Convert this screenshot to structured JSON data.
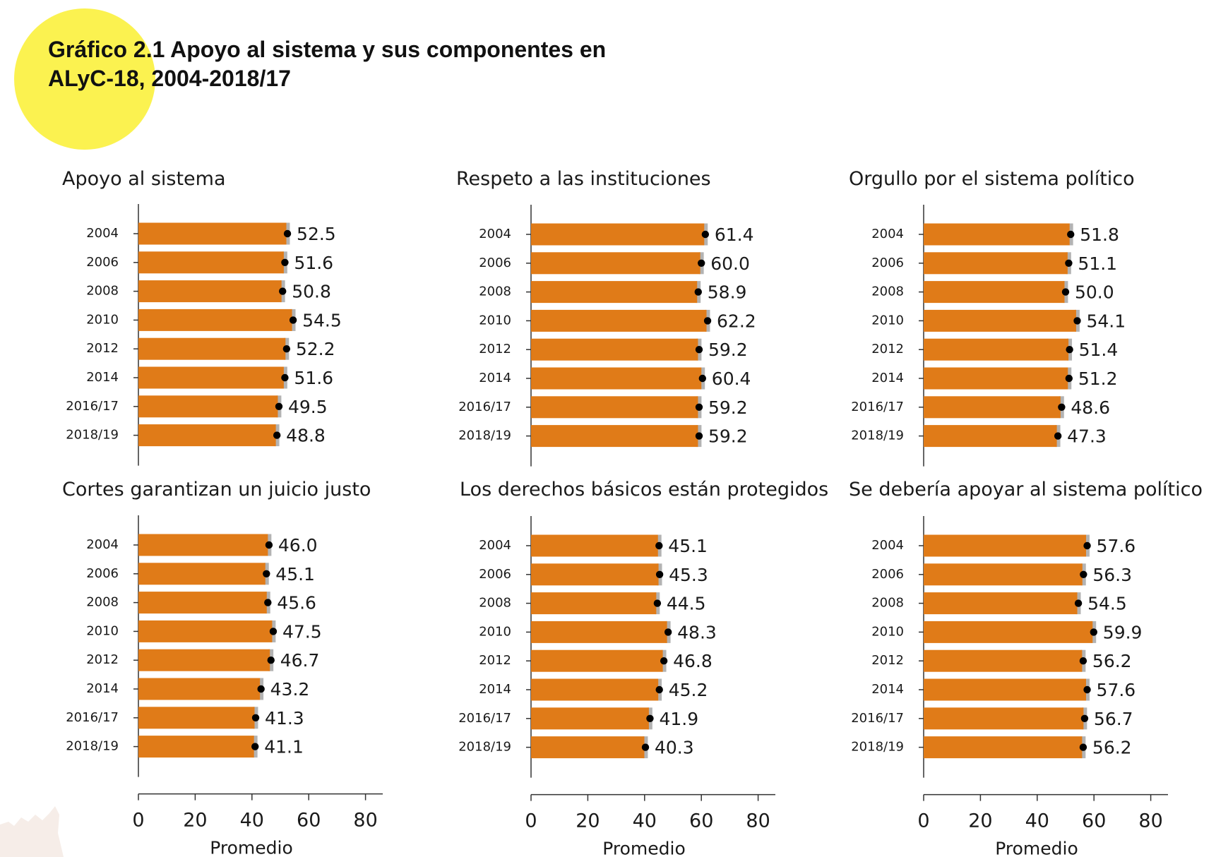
{
  "header": {
    "title_line1": "Gráfico 2.1 Apoyo al sistema y sus componentes en",
    "title_line2": "ALyC-18, 2004-2018/17"
  },
  "colors": {
    "bar": "#e07b18",
    "error_band": "#b3b3b3",
    "dot": "#000000",
    "axis": "#333333",
    "highlight": "#fbf250"
  },
  "chart_data": [
    {
      "type": "bar",
      "title": "Apoyo al sistema",
      "orientation": "horizontal",
      "categories": [
        "2004",
        "2006",
        "2008",
        "2010",
        "2012",
        "2014",
        "2016/17",
        "2018/19"
      ],
      "values": [
        52.5,
        51.6,
        50.8,
        54.5,
        52.2,
        51.6,
        49.5,
        48.8
      ],
      "value_labels": [
        "52.5",
        "51.6",
        "50.8",
        "54.5",
        "52.2",
        "51.6",
        "49.5",
        "48.8"
      ],
      "xlim": [
        0,
        86
      ]
    },
    {
      "type": "bar",
      "title": "Respeto a las instituciones",
      "orientation": "horizontal",
      "categories": [
        "2004",
        "2006",
        "2008",
        "2010",
        "2012",
        "2014",
        "2016/17",
        "2018/19"
      ],
      "values": [
        61.4,
        60.0,
        58.9,
        62.2,
        59.2,
        60.4,
        59.2,
        59.2
      ],
      "value_labels": [
        "61.4",
        "60.0",
        "58.9",
        "62.2",
        "59.2",
        "60.4",
        "59.2",
        "59.2"
      ],
      "xlim": [
        0,
        86
      ]
    },
    {
      "type": "bar",
      "title": "Orgullo por el sistema político",
      "orientation": "horizontal",
      "categories": [
        "2004",
        "2006",
        "2008",
        "2010",
        "2012",
        "2014",
        "2016/17",
        "2018/19"
      ],
      "values": [
        51.8,
        51.1,
        50.0,
        54.1,
        51.4,
        51.2,
        48.6,
        47.3
      ],
      "value_labels": [
        "51.8",
        "51.1",
        "50.0",
        "54.1",
        "51.4",
        "51.2",
        "48.6",
        "47.3"
      ],
      "xlim": [
        0,
        86
      ]
    },
    {
      "type": "bar",
      "title": "Cortes garantizan un juicio justo",
      "orientation": "horizontal",
      "categories": [
        "2004",
        "2006",
        "2008",
        "2010",
        "2012",
        "2014",
        "2016/17",
        "2018/19"
      ],
      "values": [
        46.0,
        45.1,
        45.6,
        47.5,
        46.7,
        43.2,
        41.3,
        41.1
      ],
      "value_labels": [
        "46.0",
        "45.1",
        "45.6",
        "47.5",
        "46.7",
        "43.2",
        "41.3",
        "41.1"
      ],
      "xlim": [
        0,
        86
      ],
      "xticks": [
        0,
        20,
        40,
        60,
        80
      ],
      "xlabel": "Promedio"
    },
    {
      "type": "bar",
      "title": "Los derechos básicos están protegidos",
      "orientation": "horizontal",
      "categories": [
        "2004",
        "2006",
        "2008",
        "2010",
        "2012",
        "2014",
        "2016/17",
        "2018/19"
      ],
      "values": [
        45.1,
        45.3,
        44.5,
        48.3,
        46.8,
        45.2,
        41.9,
        40.3
      ],
      "value_labels": [
        "45.1",
        "45.3",
        "44.5",
        "48.3",
        "46.8",
        "45.2",
        "41.9",
        "40.3"
      ],
      "xlim": [
        0,
        86
      ],
      "xticks": [
        0,
        20,
        40,
        60,
        80
      ],
      "xlabel": "Promedio"
    },
    {
      "type": "bar",
      "title": "Se debería apoyar al sistema político",
      "orientation": "horizontal",
      "categories": [
        "2004",
        "2006",
        "2008",
        "2010",
        "2012",
        "2014",
        "2016/17",
        "2018/19"
      ],
      "values": [
        57.6,
        56.3,
        54.5,
        59.9,
        56.2,
        57.6,
        56.7,
        56.2
      ],
      "value_labels": [
        "57.6",
        "56.3",
        "54.5",
        "59.9",
        "56.2",
        "57.6",
        "56.7",
        "56.2"
      ],
      "xlim": [
        0,
        86
      ],
      "xticks": [
        0,
        20,
        40,
        60,
        80
      ],
      "xlabel": "Promedio"
    }
  ]
}
